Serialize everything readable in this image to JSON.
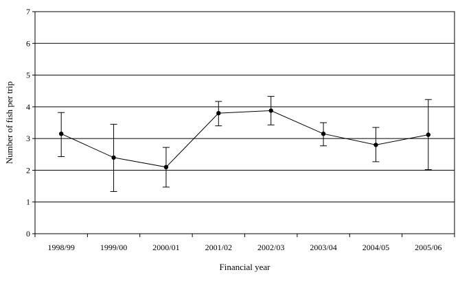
{
  "chart_data": {
    "type": "line",
    "title": "",
    "xlabel": "Financial year",
    "ylabel": "Number of fish per trip",
    "ylim": [
      0,
      7
    ],
    "yticks": [
      0,
      1,
      2,
      3,
      4,
      5,
      6,
      7
    ],
    "grid": "horizontal",
    "legend": "none",
    "categories": [
      "1998/99",
      "1999/00",
      "2000/01",
      "2001/02",
      "2002/03",
      "2003/04",
      "2004/05",
      "2005/06"
    ],
    "series": [
      {
        "values": [
          3.15,
          2.4,
          2.1,
          3.8,
          3.88,
          3.15,
          2.8,
          3.12
        ],
        "error_low": [
          2.43,
          1.33,
          1.47,
          3.4,
          3.43,
          2.77,
          2.27,
          2.02
        ],
        "error_high": [
          3.82,
          3.45,
          2.72,
          4.17,
          4.33,
          3.5,
          3.35,
          4.23
        ],
        "color": "#000000"
      }
    ]
  }
}
